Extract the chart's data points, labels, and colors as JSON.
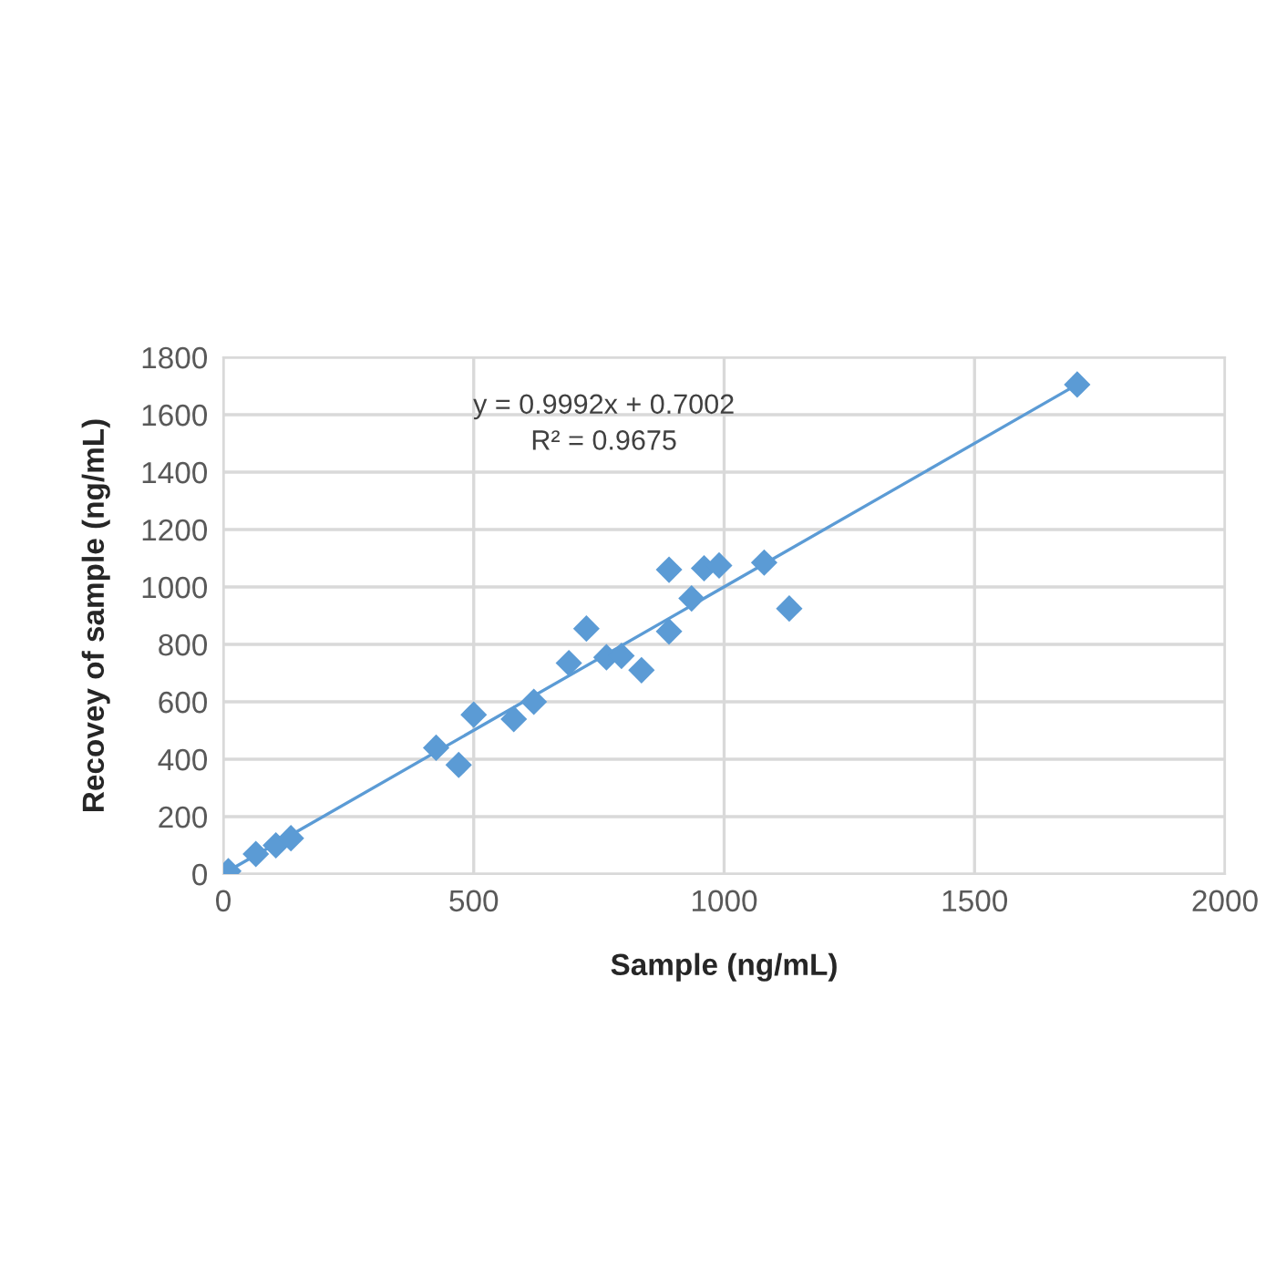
{
  "chart_data": {
    "type": "scatter",
    "xlabel": "Sample (ng/mL)",
    "ylabel": "Recovey of sample (ng/mL)",
    "annotations": [
      "y = 0.9992x + 0.7002\nR² = 0.9675"
    ],
    "series": [
      {
        "color": "#5b9bd5",
        "marker": "diamond",
        "x": [
          10,
          65,
          105,
          135,
          425,
          470,
          500,
          580,
          620,
          690,
          725,
          765,
          795,
          835,
          890,
          890,
          935,
          960,
          990,
          1080,
          1130,
          1705
        ],
        "values": [
          10,
          70,
          100,
          125,
          440,
          380,
          555,
          540,
          600,
          735,
          855,
          755,
          760,
          710,
          1060,
          845,
          960,
          1065,
          1075,
          1085,
          925,
          1705
        ]
      },
      {
        "type": "line",
        "color": "#5b9bd5",
        "marker": "none",
        "x": [
          0,
          1705
        ],
        "values": [
          1,
          1705
        ]
      }
    ],
    "xlim": [
      0,
      2000
    ],
    "xticks": [
      0,
      500,
      1000,
      1500,
      2000
    ],
    "ylim": [
      0,
      1800
    ],
    "yticks": [
      0,
      200,
      400,
      600,
      800,
      1000,
      1200,
      1400,
      1600,
      1800
    ],
    "grid": true,
    "legend": false
  }
}
